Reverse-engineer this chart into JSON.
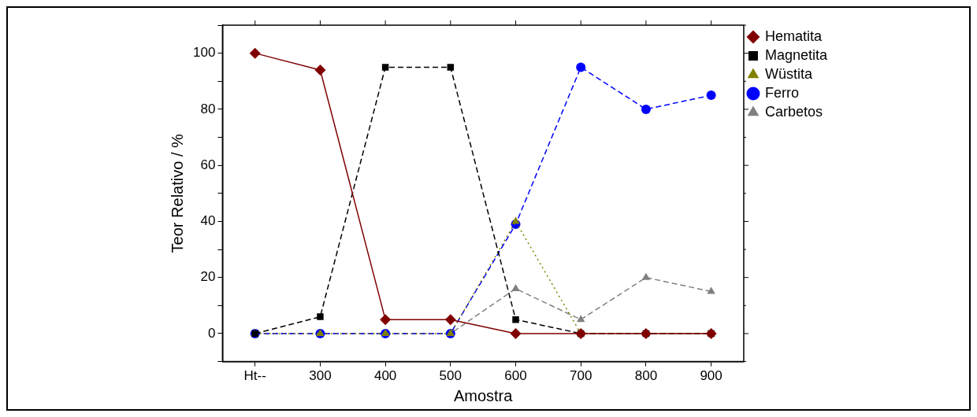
{
  "chart_data": {
    "type": "line",
    "xlabel": "Amostra",
    "ylabel": "Teor Relativo / %",
    "categories": [
      "Ht--",
      "300",
      "400",
      "500",
      "600",
      "700",
      "800",
      "900"
    ],
    "ylim": [
      -10,
      110
    ],
    "yticks": [
      {
        "value": -10,
        "label": null
      },
      0,
      {
        "value": 10,
        "label": null
      },
      20,
      {
        "value": 30,
        "label": null
      },
      40,
      {
        "value": 50,
        "label": null
      },
      60,
      {
        "value": 70,
        "label": null
      },
      80,
      {
        "value": 90,
        "label": null
      },
      100,
      {
        "value": 110,
        "label": null
      }
    ],
    "grid": false,
    "legend": "right",
    "series": [
      {
        "name": "Hematita",
        "color": "#800000",
        "marker": "diamond",
        "line_style": "solid",
        "values": [
          100,
          94,
          5,
          5,
          0,
          0,
          0,
          0
        ]
      },
      {
        "name": "Magnetita",
        "color": "#000000",
        "marker": "square",
        "line_style": "dashed",
        "values": [
          0,
          6,
          95,
          95,
          5,
          0,
          0,
          0
        ]
      },
      {
        "name": "Wüstita",
        "color": "#808000",
        "marker": "triangle",
        "line_style": "dotted",
        "values": [
          0,
          0,
          0,
          0,
          40,
          0,
          0,
          0
        ]
      },
      {
        "name": "Ferro",
        "color": "#0000ff",
        "marker": "circle",
        "line_style": "dashed",
        "values": [
          0,
          0,
          0,
          0,
          39,
          95,
          80,
          85
        ]
      },
      {
        "name": "Carbetos",
        "color": "#808080",
        "marker": "triangle",
        "line_style": "dashed",
        "values": [
          0,
          0,
          0,
          0,
          16,
          5,
          20,
          15
        ]
      }
    ]
  }
}
